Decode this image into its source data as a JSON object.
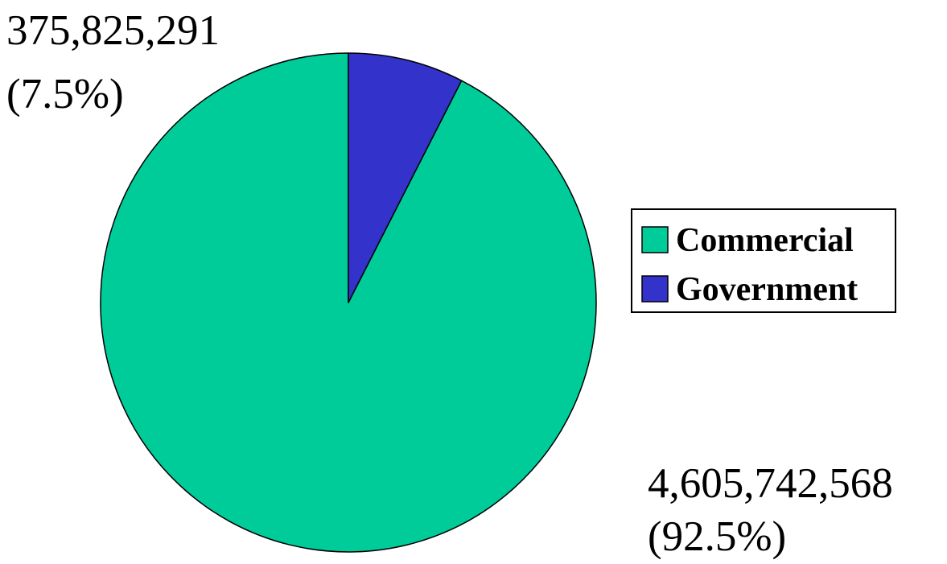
{
  "chart_data": {
    "type": "pie",
    "start_angle_deg": 0,
    "direction": "counterclockwise",
    "slices": [
      {
        "name": "Commercial",
        "value": 4605742568,
        "percent": 92.5,
        "value_label": "4,605,742,568",
        "percent_label": "(92.5%)",
        "color": "#00CC99"
      },
      {
        "name": "Government",
        "value": 375825291,
        "percent": 7.5,
        "value_label": "375,825,291",
        "percent_label": "(7.5%)",
        "color": "#3333CC"
      }
    ],
    "legend": {
      "position": "right",
      "entries": [
        "Commercial",
        "Government"
      ]
    }
  }
}
